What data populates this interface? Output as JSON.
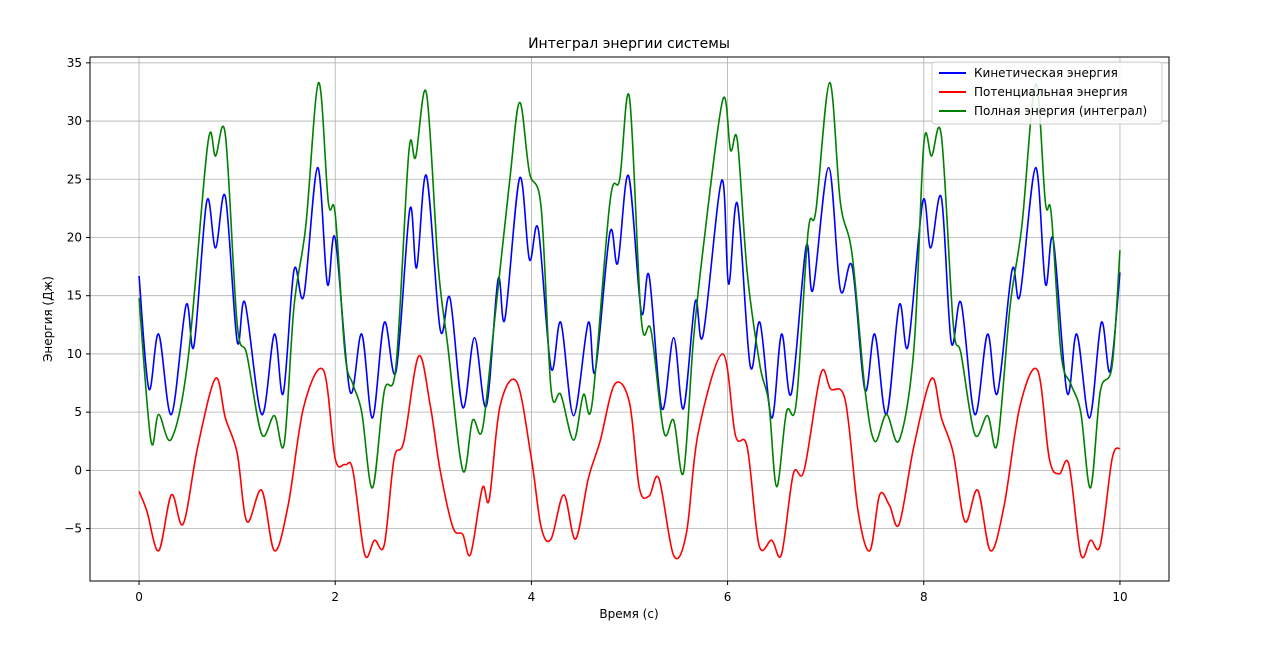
{
  "chart_data": {
    "type": "line",
    "title": "Интеграл энергии системы",
    "xlabel": "Время (с)",
    "ylabel": "Энергия (Дж)",
    "xlim": [
      -0.5,
      10.5
    ],
    "ylim": [
      -9.5,
      35.5
    ],
    "xticks": [
      0,
      2,
      4,
      6,
      8,
      10
    ],
    "yticks": [
      -5,
      0,
      5,
      10,
      15,
      20,
      25,
      30,
      35
    ],
    "grid": true,
    "legend_position": "upper-right",
    "series": [
      {
        "name": "Кинетическая энергия",
        "color": "#0000ff",
        "points": [
          [
            0,
            16.7
          ],
          [
            0.1,
            7.0
          ],
          [
            0.2,
            11.7
          ],
          [
            0.33,
            4.8
          ],
          [
            0.48,
            14.2
          ],
          [
            0.56,
            10.7
          ],
          [
            0.69,
            23.1
          ],
          [
            0.78,
            19.1
          ],
          [
            0.88,
            23.5
          ],
          [
            1.0,
            11.1
          ],
          [
            1.08,
            14.4
          ],
          [
            1.25,
            4.8
          ],
          [
            1.38,
            11.7
          ],
          [
            1.47,
            6.6
          ],
          [
            1.58,
            17.2
          ],
          [
            1.68,
            15.0
          ],
          [
            1.82,
            26.0
          ],
          [
            1.92,
            16.0
          ],
          [
            2.0,
            19.9
          ],
          [
            2.15,
            6.8
          ],
          [
            2.27,
            11.7
          ],
          [
            2.38,
            4.5
          ],
          [
            2.5,
            12.7
          ],
          [
            2.62,
            8.5
          ],
          [
            2.76,
            22.4
          ],
          [
            2.83,
            17.4
          ],
          [
            2.93,
            25.3
          ],
          [
            3.07,
            12.1
          ],
          [
            3.17,
            14.8
          ],
          [
            3.3,
            5.4
          ],
          [
            3.42,
            11.4
          ],
          [
            3.54,
            5.5
          ],
          [
            3.66,
            16.4
          ],
          [
            3.73,
            13.0
          ],
          [
            3.88,
            25.1
          ],
          [
            3.98,
            18.1
          ],
          [
            4.07,
            20.7
          ],
          [
            4.2,
            8.8
          ],
          [
            4.3,
            12.7
          ],
          [
            4.43,
            4.7
          ],
          [
            4.58,
            12.7
          ],
          [
            4.65,
            8.5
          ],
          [
            4.8,
            20.4
          ],
          [
            4.88,
            17.8
          ],
          [
            4.99,
            25.3
          ],
          [
            5.12,
            13.6
          ],
          [
            5.2,
            16.7
          ],
          [
            5.33,
            5.3
          ],
          [
            5.45,
            11.4
          ],
          [
            5.55,
            5.3
          ],
          [
            5.67,
            14.5
          ],
          [
            5.75,
            11.6
          ],
          [
            5.94,
            24.9
          ],
          [
            6.01,
            16.0
          ],
          [
            6.1,
            22.9
          ],
          [
            6.23,
            9.0
          ],
          [
            6.33,
            12.7
          ],
          [
            6.45,
            4.5
          ],
          [
            6.55,
            11.7
          ],
          [
            6.65,
            6.6
          ],
          [
            6.8,
            19.2
          ],
          [
            6.87,
            15.5
          ],
          [
            7.03,
            26.0
          ],
          [
            7.15,
            15.5
          ],
          [
            7.27,
            17.5
          ],
          [
            7.4,
            6.9
          ],
          [
            7.5,
            11.7
          ],
          [
            7.62,
            4.8
          ],
          [
            7.75,
            14.2
          ],
          [
            7.84,
            10.7
          ],
          [
            7.99,
            23.1
          ],
          [
            8.07,
            19.1
          ],
          [
            8.18,
            23.4
          ],
          [
            8.28,
            11.0
          ],
          [
            8.38,
            14.4
          ],
          [
            8.52,
            4.8
          ],
          [
            8.65,
            11.7
          ],
          [
            8.75,
            6.6
          ],
          [
            8.9,
            17.2
          ],
          [
            8.98,
            15.0
          ],
          [
            9.14,
            26.0
          ],
          [
            9.24,
            16.0
          ],
          [
            9.32,
            19.8
          ],
          [
            9.46,
            6.7
          ],
          [
            9.56,
            11.7
          ],
          [
            9.69,
            4.5
          ],
          [
            9.81,
            12.7
          ],
          [
            9.9,
            8.5
          ],
          [
            10.0,
            17.0
          ]
        ]
      },
      {
        "name": "Потенциальная энергия",
        "color": "#ff0000",
        "points": [
          [
            0,
            -1.8
          ],
          [
            0.08,
            -3.5
          ],
          [
            0.2,
            -6.9
          ],
          [
            0.33,
            -2.1
          ],
          [
            0.45,
            -4.6
          ],
          [
            0.6,
            2.1
          ],
          [
            0.78,
            7.9
          ],
          [
            0.88,
            4.5
          ],
          [
            1.0,
            1.5
          ],
          [
            1.1,
            -4.4
          ],
          [
            1.25,
            -1.7
          ],
          [
            1.38,
            -6.9
          ],
          [
            1.52,
            -3.0
          ],
          [
            1.68,
            5.5
          ],
          [
            1.88,
            8.6
          ],
          [
            2.0,
            1.0
          ],
          [
            2.1,
            0.5
          ],
          [
            2.18,
            0.0
          ],
          [
            2.3,
            -7.2
          ],
          [
            2.4,
            -6.0
          ],
          [
            2.5,
            -6.4
          ],
          [
            2.6,
            1.0
          ],
          [
            2.7,
            2.5
          ],
          [
            2.85,
            9.8
          ],
          [
            2.97,
            5.5
          ],
          [
            3.07,
            0.0
          ],
          [
            3.2,
            -4.9
          ],
          [
            3.3,
            -5.5
          ],
          [
            3.38,
            -7.2
          ],
          [
            3.5,
            -1.5
          ],
          [
            3.57,
            -2.5
          ],
          [
            3.68,
            5.5
          ],
          [
            3.85,
            7.6
          ],
          [
            4.0,
            1.0
          ],
          [
            4.1,
            -4.9
          ],
          [
            4.2,
            -5.9
          ],
          [
            4.33,
            -2.1
          ],
          [
            4.45,
            -5.9
          ],
          [
            4.58,
            -0.7
          ],
          [
            4.7,
            2.5
          ],
          [
            4.85,
            7.4
          ],
          [
            5.0,
            5.8
          ],
          [
            5.1,
            -1.5
          ],
          [
            5.2,
            -2.2
          ],
          [
            5.3,
            -0.7
          ],
          [
            5.45,
            -7.3
          ],
          [
            5.58,
            -5.4
          ],
          [
            5.7,
            3.2
          ],
          [
            5.95,
            10.0
          ],
          [
            6.08,
            3.0
          ],
          [
            6.2,
            2.0
          ],
          [
            6.32,
            -6.4
          ],
          [
            6.45,
            -6.0
          ],
          [
            6.55,
            -7.2
          ],
          [
            6.67,
            -0.3
          ],
          [
            6.78,
            0.0
          ],
          [
            6.95,
            8.3
          ],
          [
            7.05,
            7.0
          ],
          [
            7.2,
            6.0
          ],
          [
            7.33,
            -3.5
          ],
          [
            7.45,
            -6.9
          ],
          [
            7.55,
            -2.1
          ],
          [
            7.65,
            -3.0
          ],
          [
            7.75,
            -4.6
          ],
          [
            7.9,
            2.1
          ],
          [
            8.08,
            7.9
          ],
          [
            8.18,
            4.5
          ],
          [
            8.3,
            1.5
          ],
          [
            8.42,
            -4.4
          ],
          [
            8.55,
            -1.7
          ],
          [
            8.68,
            -6.9
          ],
          [
            8.82,
            -3.0
          ],
          [
            8.98,
            5.5
          ],
          [
            9.16,
            8.6
          ],
          [
            9.28,
            1.0
          ],
          [
            9.38,
            -0.3
          ],
          [
            9.48,
            0.5
          ],
          [
            9.6,
            -7.2
          ],
          [
            9.7,
            -6.0
          ],
          [
            9.8,
            -6.4
          ],
          [
            9.92,
            1.0
          ],
          [
            10.0,
            1.9
          ]
        ]
      },
      {
        "name": "Полная энергия (интеграл)",
        "color": "#008000",
        "points": [
          [
            0,
            14.8
          ],
          [
            0.12,
            2.6
          ],
          [
            0.2,
            4.8
          ],
          [
            0.33,
            2.7
          ],
          [
            0.5,
            9.6
          ],
          [
            0.7,
            28.0
          ],
          [
            0.78,
            27.0
          ],
          [
            0.88,
            28.8
          ],
          [
            1.0,
            12.6
          ],
          [
            1.1,
            9.9
          ],
          [
            1.25,
            3.1
          ],
          [
            1.38,
            4.7
          ],
          [
            1.48,
            2.3
          ],
          [
            1.58,
            14.1
          ],
          [
            1.7,
            21.0
          ],
          [
            1.83,
            33.3
          ],
          [
            1.93,
            23.0
          ],
          [
            2.0,
            22.0
          ],
          [
            2.1,
            10.0
          ],
          [
            2.18,
            7.4
          ],
          [
            2.27,
            5.0
          ],
          [
            2.38,
            -1.5
          ],
          [
            2.5,
            6.8
          ],
          [
            2.62,
            9.0
          ],
          [
            2.75,
            27.3
          ],
          [
            2.82,
            26.9
          ],
          [
            2.93,
            32.4
          ],
          [
            3.05,
            17.5
          ],
          [
            3.15,
            10.5
          ],
          [
            3.3,
            0.0
          ],
          [
            3.4,
            4.3
          ],
          [
            3.5,
            3.5
          ],
          [
            3.62,
            12.5
          ],
          [
            3.78,
            25.0
          ],
          [
            3.88,
            31.6
          ],
          [
            3.98,
            25.6
          ],
          [
            4.1,
            22.5
          ],
          [
            4.2,
            7.0
          ],
          [
            4.3,
            6.5
          ],
          [
            4.43,
            2.6
          ],
          [
            4.53,
            6.5
          ],
          [
            4.62,
            5.8
          ],
          [
            4.8,
            23.0
          ],
          [
            4.9,
            25.0
          ],
          [
            5.0,
            32.0
          ],
          [
            5.12,
            13.0
          ],
          [
            5.22,
            12.0
          ],
          [
            5.35,
            3.3
          ],
          [
            5.45,
            4.3
          ],
          [
            5.55,
            -0.2
          ],
          [
            5.65,
            11.0
          ],
          [
            5.75,
            19.0
          ],
          [
            5.95,
            31.8
          ],
          [
            6.03,
            27.5
          ],
          [
            6.1,
            28.3
          ],
          [
            6.2,
            17.0
          ],
          [
            6.33,
            9.0
          ],
          [
            6.42,
            5.8
          ],
          [
            6.5,
            -1.4
          ],
          [
            6.6,
            5.0
          ],
          [
            6.7,
            5.8
          ],
          [
            6.82,
            20.4
          ],
          [
            6.9,
            22.3
          ],
          [
            7.04,
            33.3
          ],
          [
            7.15,
            23.0
          ],
          [
            7.27,
            18.5
          ],
          [
            7.4,
            7.0
          ],
          [
            7.5,
            2.5
          ],
          [
            7.62,
            4.8
          ],
          [
            7.75,
            2.6
          ],
          [
            7.9,
            10.5
          ],
          [
            8.0,
            28.0
          ],
          [
            8.08,
            27.0
          ],
          [
            8.18,
            28.7
          ],
          [
            8.3,
            12.6
          ],
          [
            8.38,
            10.0
          ],
          [
            8.52,
            3.1
          ],
          [
            8.65,
            4.7
          ],
          [
            8.75,
            2.3
          ],
          [
            8.88,
            14.1
          ],
          [
            9.0,
            21.0
          ],
          [
            9.14,
            33.2
          ],
          [
            9.24,
            23.0
          ],
          [
            9.3,
            22.0
          ],
          [
            9.4,
            10.0
          ],
          [
            9.5,
            7.4
          ],
          [
            9.6,
            5.0
          ],
          [
            9.7,
            -1.5
          ],
          [
            9.8,
            6.8
          ],
          [
            9.92,
            9.0
          ],
          [
            10.0,
            18.9
          ]
        ]
      }
    ]
  }
}
